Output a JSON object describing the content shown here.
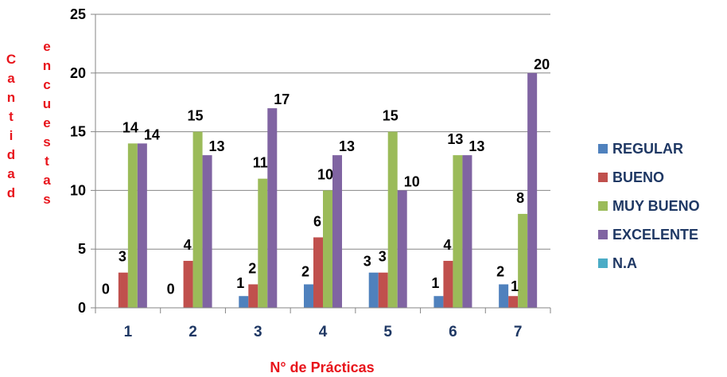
{
  "chart_data": {
    "type": "bar",
    "categories": [
      "1",
      "2",
      "3",
      "4",
      "5",
      "6",
      "7"
    ],
    "series": [
      {
        "name": "REGULAR",
        "color": "#4f81bd",
        "values": [
          0,
          0,
          1,
          2,
          3,
          1,
          2
        ]
      },
      {
        "name": "BUENO",
        "color": "#c0504d",
        "values": [
          3,
          4,
          2,
          6,
          3,
          4,
          1
        ]
      },
      {
        "name": "MUY BUENO",
        "color": "#9bbb59",
        "values": [
          14,
          15,
          11,
          10,
          15,
          13,
          8
        ]
      },
      {
        "name": "EXCELENTE",
        "color": "#8064a2",
        "values": [
          14,
          13,
          17,
          13,
          10,
          13,
          20
        ]
      },
      {
        "name": "N.A",
        "color": "#4bacc6",
        "values": [
          0,
          0,
          0,
          0,
          0,
          0,
          0
        ]
      }
    ],
    "xlabel": "N° de Prácticas",
    "ylabel_col1": [
      "C",
      "a",
      "n",
      "t",
      "i",
      "d",
      "a",
      "d"
    ],
    "ylabel_col2": [
      "e",
      "n",
      "c",
      "u",
      "e",
      "s",
      "t",
      "a",
      "s"
    ],
    "ylim": [
      0,
      25
    ],
    "yticks": [
      0,
      5,
      10,
      15,
      20,
      25
    ],
    "grid": true,
    "legend_position": "right",
    "data_labels": [
      {
        "text": "0",
        "category": "1",
        "series": "REGULAR"
      },
      {
        "text": "3",
        "category": "1",
        "series": "BUENO"
      },
      {
        "text": "14",
        "category": "1",
        "series": "MUY BUENO"
      },
      {
        "text": "14",
        "category": "1",
        "series": "EXCELENTE"
      },
      {
        "text": "0",
        "category": "2",
        "series": "REGULAR"
      },
      {
        "text": "4",
        "category": "2",
        "series": "BUENO"
      },
      {
        "text": "15",
        "category": "2",
        "series": "MUY BUENO"
      },
      {
        "text": "13",
        "category": "2",
        "series": "EXCELENTE"
      },
      {
        "text": "1",
        "category": "3",
        "series": "REGULAR"
      },
      {
        "text": "2",
        "category": "3",
        "series": "BUENO"
      },
      {
        "text": "11",
        "category": "3",
        "series": "MUY BUENO"
      },
      {
        "text": "17",
        "category": "3",
        "series": "EXCELENTE"
      },
      {
        "text": "2",
        "category": "4",
        "series": "REGULAR"
      },
      {
        "text": "6",
        "category": "4",
        "series": "BUENO"
      },
      {
        "text": "10",
        "category": "4",
        "series": "MUY BUENO"
      },
      {
        "text": "13",
        "category": "4",
        "series": "EXCELENTE"
      },
      {
        "text": "3",
        "category": "5",
        "series": "REGULAR"
      },
      {
        "text": "3",
        "category": "5",
        "series": "BUENO"
      },
      {
        "text": "15",
        "category": "5",
        "series": "MUY BUENO"
      },
      {
        "text": "10",
        "category": "5",
        "series": "EXCELENTE"
      },
      {
        "text": "1",
        "category": "6",
        "series": "REGULAR"
      },
      {
        "text": "4",
        "category": "6",
        "series": "BUENO"
      },
      {
        "text": "13",
        "category": "6",
        "series": "MUY BUENO"
      },
      {
        "text": "13",
        "category": "6",
        "series": "EXCELENTE"
      },
      {
        "text": "2",
        "category": "7",
        "series": "REGULAR"
      },
      {
        "text": "1",
        "category": "7",
        "series": "BUENO"
      },
      {
        "text": "8",
        "category": "7",
        "series": "MUY BUENO"
      },
      {
        "text": "20",
        "category": "7",
        "series": "EXCELENTE"
      }
    ]
  }
}
